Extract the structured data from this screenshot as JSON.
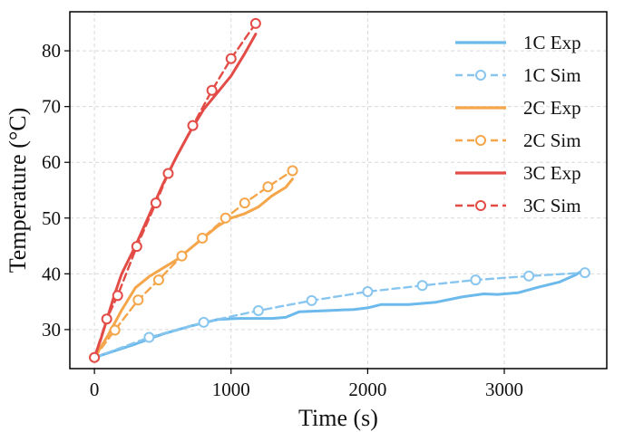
{
  "chart_data": {
    "type": "line",
    "xlabel": "Time (s)",
    "ylabel": "Temperature (°C)",
    "xlim": [
      -180,
      3750
    ],
    "ylim": [
      23,
      87
    ],
    "xticks": [
      0,
      1000,
      2000,
      3000
    ],
    "yticks": [
      30,
      40,
      50,
      60,
      70,
      80
    ],
    "grid": true,
    "legend": "top-right",
    "series": [
      {
        "name": "1C Exp",
        "style": "solid",
        "marker": false,
        "color": "#6cb9ec",
        "points": [
          [
            0,
            25.0
          ],
          [
            150,
            26.2
          ],
          [
            300,
            27.4
          ],
          [
            500,
            29.2
          ],
          [
            700,
            30.6
          ],
          [
            900,
            31.8
          ],
          [
            1050,
            32.0
          ],
          [
            1300,
            32.0
          ],
          [
            1400,
            32.2
          ],
          [
            1500,
            33.2
          ],
          [
            1700,
            33.4
          ],
          [
            1900,
            33.6
          ],
          [
            2000,
            33.9
          ],
          [
            2100,
            34.5
          ],
          [
            2300,
            34.5
          ],
          [
            2500,
            34.9
          ],
          [
            2700,
            35.9
          ],
          [
            2850,
            36.4
          ],
          [
            2950,
            36.3
          ],
          [
            3100,
            36.6
          ],
          [
            3250,
            37.6
          ],
          [
            3400,
            38.5
          ],
          [
            3520,
            39.8
          ],
          [
            3580,
            40.7
          ]
        ]
      },
      {
        "name": "1C Sim",
        "style": "dashed",
        "marker": true,
        "color": "#89c6ef",
        "points": [
          [
            0,
            25.0
          ],
          [
            400,
            28.6
          ],
          [
            800,
            31.3
          ],
          [
            1200,
            33.4
          ],
          [
            1590,
            35.2
          ],
          [
            2000,
            36.8
          ],
          [
            2400,
            37.9
          ],
          [
            2790,
            38.9
          ],
          [
            3180,
            39.6
          ],
          [
            3590,
            40.2
          ]
        ]
      },
      {
        "name": "2C Exp",
        "style": "solid",
        "marker": false,
        "color": "#f5a54a",
        "points": [
          [
            0,
            25.0
          ],
          [
            100,
            29.0
          ],
          [
            200,
            33.5
          ],
          [
            300,
            37.5
          ],
          [
            400,
            39.5
          ],
          [
            500,
            41.0
          ],
          [
            600,
            42.5
          ],
          [
            700,
            44.5
          ],
          [
            800,
            46.5
          ],
          [
            900,
            48.5
          ],
          [
            1000,
            50.0
          ],
          [
            1100,
            50.8
          ],
          [
            1200,
            52.0
          ],
          [
            1300,
            54.0
          ],
          [
            1400,
            55.5
          ],
          [
            1450,
            57.0
          ]
        ]
      },
      {
        "name": "2C Sim",
        "style": "dashed",
        "marker": true,
        "color": "#f5a54a",
        "points": [
          [
            0,
            25.0
          ],
          [
            150,
            29.9
          ],
          [
            320,
            35.3
          ],
          [
            470,
            38.9
          ],
          [
            640,
            43.2
          ],
          [
            790,
            46.4
          ],
          [
            960,
            50.0
          ],
          [
            1100,
            52.7
          ],
          [
            1270,
            55.6
          ],
          [
            1450,
            58.5
          ]
        ]
      },
      {
        "name": "3C Exp",
        "style": "solid",
        "marker": false,
        "color": "#e34c46",
        "points": [
          [
            0,
            25.0
          ],
          [
            50,
            28.5
          ],
          [
            100,
            32.5
          ],
          [
            150,
            36.5
          ],
          [
            200,
            40.0
          ],
          [
            300,
            45.0
          ],
          [
            400,
            50.5
          ],
          [
            500,
            56.0
          ],
          [
            600,
            61.0
          ],
          [
            700,
            65.5
          ],
          [
            800,
            69.5
          ],
          [
            900,
            72.5
          ],
          [
            1000,
            75.5
          ],
          [
            1100,
            79.5
          ],
          [
            1180,
            83.0
          ]
        ]
      },
      {
        "name": "3C Sim",
        "style": "dashed",
        "marker": true,
        "color": "#e34c46",
        "points": [
          [
            0,
            25.0
          ],
          [
            90,
            31.9
          ],
          [
            170,
            36.1
          ],
          [
            310,
            44.9
          ],
          [
            450,
            52.7
          ],
          [
            540,
            58.0
          ],
          [
            720,
            66.6
          ],
          [
            860,
            72.9
          ],
          [
            1000,
            78.6
          ],
          [
            1180,
            84.9
          ]
        ]
      }
    ]
  }
}
